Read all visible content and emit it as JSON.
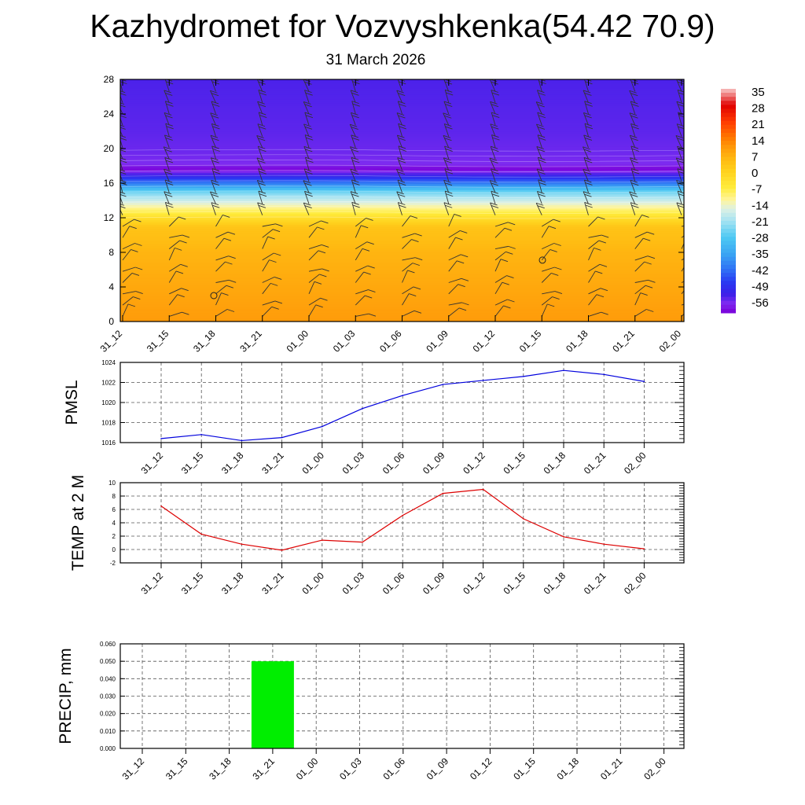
{
  "header": {
    "title": "Kazhydromet for Vozvyshkenka(54.42 70.9)",
    "date": "31 March 2026"
  },
  "colors": {
    "pmsl_line": "#0000dd",
    "temp_line": "#dd0000",
    "precip_bar": "#00ee00"
  },
  "chart_data": [
    {
      "type": "heatmap",
      "title": "Temperature and wind cross-section",
      "x_ticks": [
        "31_12",
        "31_15",
        "31_18",
        "31_21",
        "01_00",
        "01_03",
        "01_06",
        "01_09",
        "01_12",
        "01_15",
        "01_18",
        "01_21",
        "02_00"
      ],
      "y_ticks": [
        "0",
        "4",
        "8",
        "12",
        "16",
        "20",
        "24",
        "28"
      ],
      "ylim": [
        0,
        28
      ],
      "colorbar_labels": [
        "35",
        "28",
        "21",
        "14",
        "7",
        "0",
        "-7",
        "-14",
        "-21",
        "-28",
        "-35",
        "-42",
        "-49",
        "-56"
      ],
      "profile_levels": [
        0,
        4,
        8,
        11,
        12,
        13,
        15,
        16,
        17,
        17.7,
        18.2,
        19.5,
        22,
        28
      ],
      "profile_values": [
        10,
        8,
        6,
        3,
        -3,
        -10,
        -25,
        -40,
        -52,
        -60,
        -56,
        -55,
        -54,
        -53
      ]
    },
    {
      "type": "line",
      "ylabel": "PMSL",
      "categories": [
        "31_12",
        "31_15",
        "31_18",
        "31_21",
        "01_00",
        "01_03",
        "01_06",
        "01_09",
        "01_12",
        "01_15",
        "01_18",
        "01_21",
        "02_00"
      ],
      "values": [
        1016.4,
        1016.8,
        1016.2,
        1016.5,
        1017.6,
        1019.4,
        1020.7,
        1021.8,
        1022.2,
        1022.6,
        1023.2,
        1022.8,
        1022.1
      ],
      "ylim": [
        1016,
        1024
      ],
      "y_ticks": [
        "1016",
        "1018",
        "1020",
        "1022",
        "1024"
      ],
      "grid": true
    },
    {
      "type": "line",
      "ylabel": "TEMP at 2 M",
      "categories": [
        "31_12",
        "31_15",
        "31_18",
        "31_21",
        "01_00",
        "01_03",
        "01_06",
        "01_09",
        "01_12",
        "01_15",
        "01_18",
        "01_21",
        "02_00"
      ],
      "values": [
        6.5,
        2.3,
        0.8,
        -0.1,
        1.4,
        1.1,
        5.1,
        8.4,
        9.0,
        4.6,
        1.9,
        0.8,
        0.1
      ],
      "ylim": [
        -2,
        10
      ],
      "y_ticks": [
        "-2",
        "0",
        "2",
        "4",
        "6",
        "8",
        "10"
      ],
      "grid": true
    },
    {
      "type": "bar",
      "ylabel": "PRECIP, mm",
      "categories": [
        "31_12",
        "31_15",
        "31_18",
        "31_21",
        "01_00",
        "01_03",
        "01_06",
        "01_09",
        "01_12",
        "01_15",
        "01_18",
        "01_21",
        "02_00"
      ],
      "values": [
        0,
        0,
        0,
        0.05,
        0,
        0,
        0,
        0,
        0,
        0,
        0,
        0,
        0
      ],
      "ylim": [
        0,
        0.06
      ],
      "y_ticks": [
        "0.000",
        "0.010",
        "0.020",
        "0.030",
        "0.040",
        "0.050",
        "0.060"
      ],
      "grid": true
    }
  ]
}
